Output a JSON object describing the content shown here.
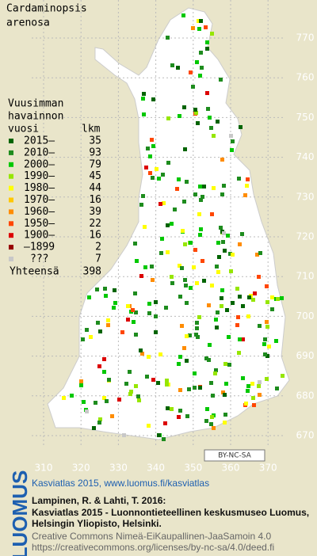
{
  "map": {
    "title": [
      "Cardaminopsis",
      "arenosa"
    ],
    "legend": {
      "heading": [
        "Vuusimman",
        "havainnon",
        "vuosi"
      ],
      "count_heading": "lkm",
      "rows": [
        {
          "label": "2015–",
          "count": 35,
          "color": "#006400"
        },
        {
          "label": "2010–",
          "count": 93,
          "color": "#1e8c1e"
        },
        {
          "label": "2000–",
          "count": 79,
          "color": "#00c800"
        },
        {
          "label": "1990–",
          "count": 45,
          "color": "#96e600"
        },
        {
          "label": "1980–",
          "count": 44,
          "color": "#ffff00"
        },
        {
          "label": "1970–",
          "count": 16,
          "color": "#ffc800"
        },
        {
          "label": "1960–",
          "count": 39,
          "color": "#ff8c00"
        },
        {
          "label": "1950–",
          "count": 22,
          "color": "#ff4600"
        },
        {
          "label": "1900–",
          "count": 16,
          "color": "#dc0000"
        },
        {
          "label": "–1899",
          "count": 2,
          "color": "#960000"
        },
        {
          "label": "???",
          "count": 7,
          "color": "#c8c8c8"
        }
      ],
      "total_label": "Yhteensä",
      "total": 398
    },
    "x_labels": [
      310,
      320,
      330,
      340,
      350,
      360,
      370
    ],
    "y_labels": [
      670,
      680,
      690,
      700,
      710,
      720,
      730,
      740,
      750,
      760,
      770
    ],
    "license_badge": "BY-NC-SA"
  },
  "footer": {
    "brand": "LUOMUS",
    "headline": "Kasviatlas 2015, www.luomus.fi/kasviatlas",
    "citation": [
      "Lampinen, R. & Lahti, T. 2016:",
      "Kasviatlas 2015 - Luonnontieteellinen keskusmuseo Luomus,",
      "Helsingin Yliopisto, Helsinki."
    ],
    "license": [
      "Creative Commons Nimeä-EiKaupallinen-JaaSamoin 4.0",
      "https://creativecommons.org/licenses/by-nc-sa/4.0/deed.fi"
    ]
  }
}
